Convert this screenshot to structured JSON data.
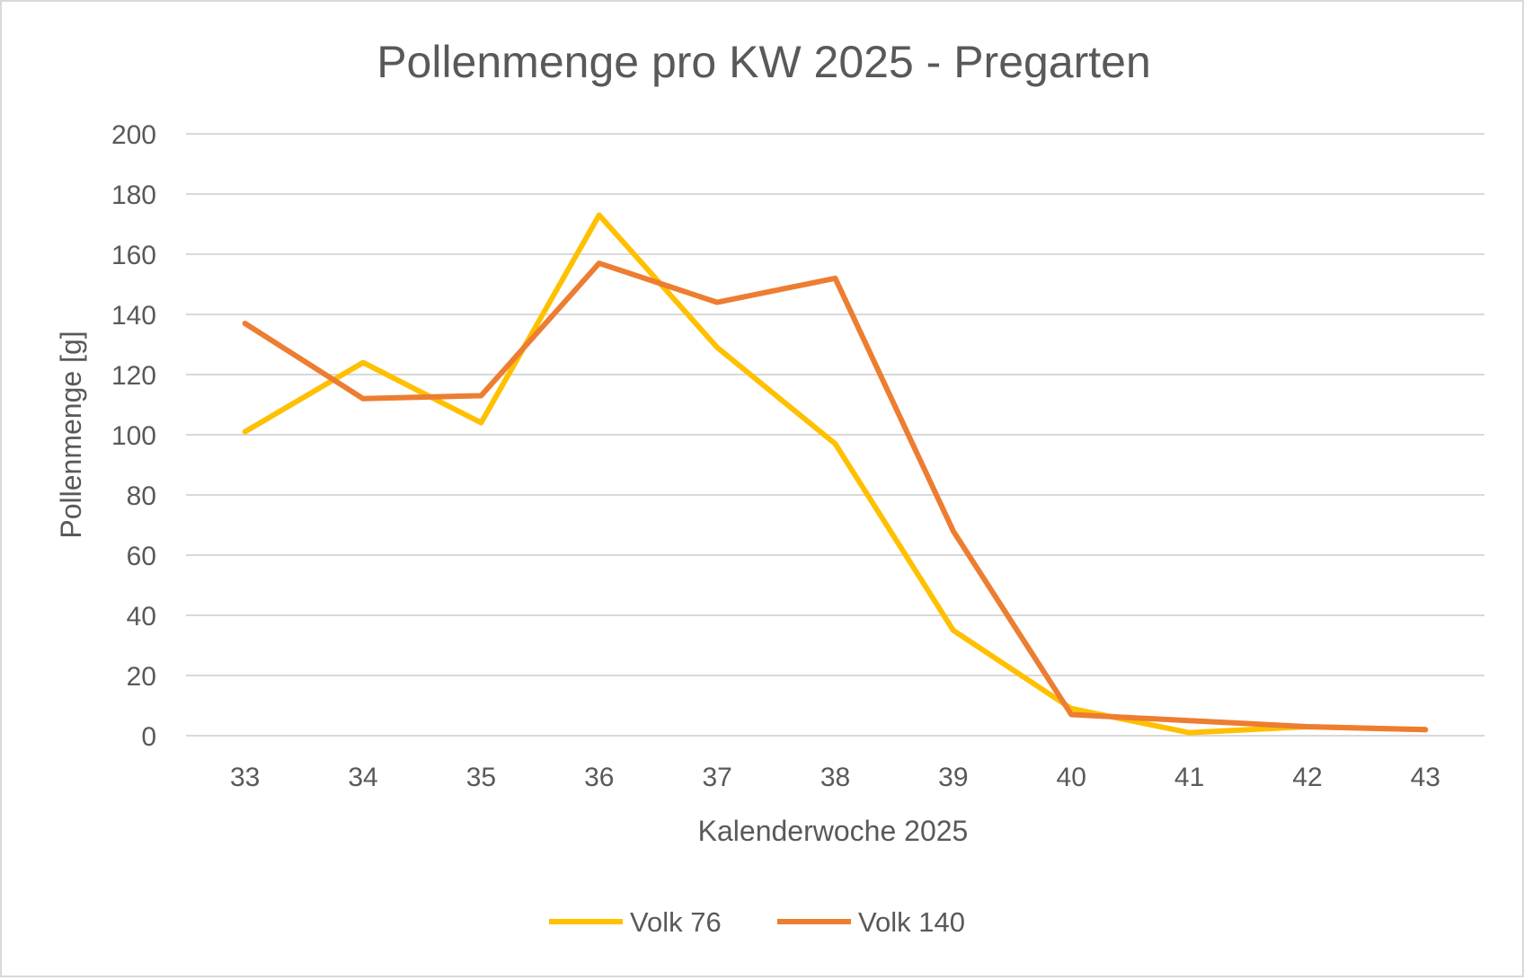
{
  "chart_data": {
    "type": "line",
    "title": "Pollenmenge pro KW 2025 - Pregarten",
    "xlabel": "Kalenderwoche 2025",
    "ylabel": "Pollenmenge [g]",
    "categories": [
      "33",
      "34",
      "35",
      "36",
      "37",
      "38",
      "39",
      "40",
      "41",
      "42",
      "43"
    ],
    "ylim": [
      0,
      200
    ],
    "yticks": [
      "0",
      "20",
      "40",
      "60",
      "80",
      "100",
      "120",
      "140",
      "160",
      "180",
      "200"
    ],
    "grid": true,
    "legend_position": "bottom",
    "series": [
      {
        "name": "Volk 76",
        "color": "#FFC000",
        "values": [
          101,
          124,
          104,
          173,
          129,
          97,
          35,
          9,
          1,
          3,
          2
        ]
      },
      {
        "name": "Volk 140",
        "color": "#ED7D31",
        "values": [
          137,
          112,
          113,
          157,
          144,
          152,
          68,
          7,
          5,
          3,
          2
        ]
      }
    ]
  }
}
